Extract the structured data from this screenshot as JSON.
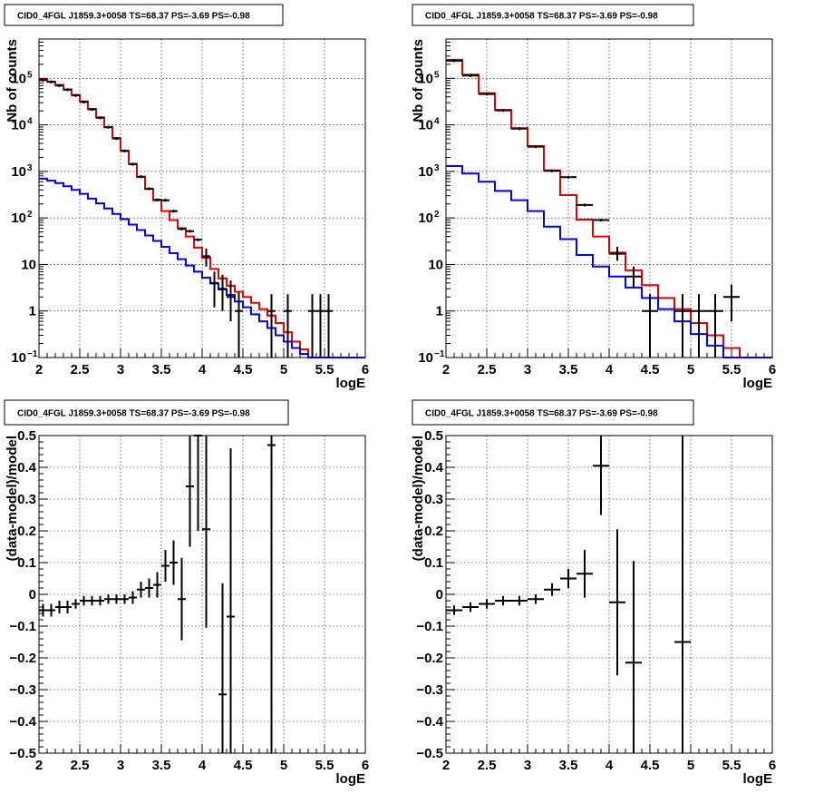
{
  "colors": {
    "data": "#000000",
    "total_model": "#e00000",
    "component_model": "#0000e0"
  },
  "chart_data": [
    {
      "id": "counts-left",
      "type": "line",
      "title": "CID0_4FGL J1859.3+0058 TS=68.37 PS=-3.69 PS=-0.98",
      "xlabel": "logE",
      "ylabel": "Nb of counts",
      "xlim": [
        2,
        6
      ],
      "ylim": [
        0.1,
        700000
      ],
      "yscale": "log",
      "grid": true,
      "x_ticks": [
        "2",
        "2.5",
        "3",
        "3.5",
        "4",
        "4.5",
        "5",
        "5.5",
        "6"
      ],
      "y_ticks": [
        {
          "value": 0.1,
          "label": "10",
          "exp": "−1"
        },
        {
          "value": 1,
          "label": "1",
          "exp": ""
        },
        {
          "value": 10,
          "label": "10",
          "exp": ""
        },
        {
          "value": 100,
          "label": "10",
          "exp": "2"
        },
        {
          "value": 1000,
          "label": "10",
          "exp": "3"
        },
        {
          "value": 10000,
          "label": "10",
          "exp": "4"
        },
        {
          "value": 100000,
          "label": "10",
          "exp": "5"
        }
      ],
      "bin_edges": [
        2.0,
        2.1,
        2.2,
        2.3,
        2.4,
        2.5,
        2.6,
        2.7,
        2.8,
        2.9,
        3.0,
        3.1,
        3.2,
        3.3,
        3.4,
        3.5,
        3.6,
        3.7,
        3.8,
        3.9,
        4.0,
        4.1,
        4.2,
        4.3,
        4.4,
        4.5,
        4.6,
        4.7,
        4.8,
        4.9,
        5.0,
        5.1,
        5.2,
        5.3,
        5.4,
        5.5,
        5.6,
        5.7,
        5.8,
        5.9,
        6.0
      ],
      "series": [
        {
          "role": "total_model",
          "values": [
            95000,
            85000,
            72000,
            58000,
            44000,
            32000,
            22000,
            14500,
            9000,
            5200,
            2800,
            1450,
            760,
            420,
            240,
            140,
            90,
            60,
            40,
            23,
            14,
            8,
            5,
            3.5,
            2.6,
            2,
            1.5,
            1.1,
            0.8,
            0.55,
            0.35,
            0.22,
            0.15,
            0.1,
            0.1,
            0.1,
            0.1,
            0.1,
            0.1,
            0.1
          ]
        },
        {
          "role": "component_model",
          "values": [
            700,
            630,
            560,
            480,
            400,
            330,
            260,
            205,
            160,
            122,
            94,
            72,
            55,
            42,
            32,
            24,
            17.5,
            13,
            9.5,
            7,
            5.2,
            3.9,
            2.9,
            2.2,
            1.6,
            1.2,
            0.85,
            0.6,
            0.43,
            0.3,
            0.22,
            0.16,
            0.12,
            0.1,
            0.1,
            0.1,
            0.1,
            0.1,
            0.1,
            0.1
          ]
        }
      ],
      "points": [
        {
          "x": 2.05,
          "y": 92000
        },
        {
          "x": 2.15,
          "y": 84000
        },
        {
          "x": 2.25,
          "y": 70000
        },
        {
          "x": 2.35,
          "y": 57000
        },
        {
          "x": 2.45,
          "y": 43000
        },
        {
          "x": 2.55,
          "y": 31000
        },
        {
          "x": 2.65,
          "y": 21500
        },
        {
          "x": 2.75,
          "y": 14200
        },
        {
          "x": 2.85,
          "y": 8900
        },
        {
          "x": 2.95,
          "y": 5100
        },
        {
          "x": 3.05,
          "y": 2750
        },
        {
          "x": 3.15,
          "y": 1430
        },
        {
          "x": 3.25,
          "y": 770
        },
        {
          "x": 3.35,
          "y": 425
        },
        {
          "x": 3.45,
          "y": 245
        },
        {
          "x": 3.55,
          "y": 240
        },
        {
          "x": 3.65,
          "y": 140
        },
        {
          "x": 3.75,
          "y": 58
        },
        {
          "x": 3.85,
          "y": 52
        },
        {
          "x": 3.95,
          "y": 34
        },
        {
          "x": 4.05,
          "y": 15,
          "lo": 9,
          "hi": 22
        },
        {
          "x": 4.15,
          "y": 4,
          "lo": 1.2,
          "hi": 7
        },
        {
          "x": 4.25,
          "y": 3,
          "lo": 1,
          "hi": 6
        },
        {
          "x": 4.35,
          "y": 2,
          "lo": 0.6,
          "hi": 4.5
        },
        {
          "x": 4.45,
          "y": 1,
          "lo": 0.1,
          "hi": 2.5
        },
        {
          "x": 4.85,
          "y": 1,
          "lo": 0.1,
          "hi": 2.3
        },
        {
          "x": 5.05,
          "y": 1,
          "lo": 0.1,
          "hi": 2.3
        },
        {
          "x": 5.35,
          "y": 1,
          "lo": 0.1,
          "hi": 2.3
        },
        {
          "x": 5.45,
          "y": 1,
          "lo": 0.1,
          "hi": 2.3
        },
        {
          "x": 5.55,
          "y": 1,
          "lo": 0.1,
          "hi": 2.3
        }
      ],
      "xhalf": 0.05
    },
    {
      "id": "counts-right",
      "type": "line",
      "title": "CID0_4FGL J1859.3+0058 TS=68.37 PS=-3.69 PS=-0.98",
      "xlabel": "logE",
      "ylabel": "Nb of counts",
      "xlim": [
        2,
        6
      ],
      "ylim": [
        0.1,
        700000
      ],
      "yscale": "log",
      "grid": true,
      "x_ticks": [
        "2",
        "2.5",
        "3",
        "3.5",
        "4",
        "4.5",
        "5",
        "5.5",
        "6"
      ],
      "y_ticks": [
        {
          "value": 0.1,
          "label": "10",
          "exp": "−1"
        },
        {
          "value": 1,
          "label": "1",
          "exp": ""
        },
        {
          "value": 10,
          "label": "10",
          "exp": ""
        },
        {
          "value": 100,
          "label": "10",
          "exp": "2"
        },
        {
          "value": 1000,
          "label": "10",
          "exp": "3"
        },
        {
          "value": 10000,
          "label": "10",
          "exp": "4"
        },
        {
          "value": 100000,
          "label": "10",
          "exp": "5"
        }
      ],
      "bin_edges": [
        2.0,
        2.2,
        2.4,
        2.6,
        2.8,
        3.0,
        3.2,
        3.4,
        3.6,
        3.8,
        4.0,
        4.2,
        4.4,
        4.6,
        4.8,
        5.0,
        5.2,
        5.4,
        5.6,
        5.8,
        6.0
      ],
      "series": [
        {
          "role": "total_model",
          "values": [
            250000,
            120000,
            48000,
            21000,
            8500,
            3500,
            1050,
            310,
            92,
            40,
            18,
            7.5,
            3.6,
            1.9,
            1.1,
            0.55,
            0.3,
            0.16,
            0.1,
            0.1
          ]
        },
        {
          "role": "component_model",
          "values": [
            1300,
            900,
            600,
            380,
            240,
            140,
            65,
            35,
            16,
            9,
            5.5,
            3.2,
            1.9,
            1.1,
            0.6,
            0.32,
            0.18,
            0.1,
            0.1,
            0.1
          ]
        }
      ],
      "points": [
        {
          "x": 2.1,
          "y": 240000
        },
        {
          "x": 2.3,
          "y": 115000
        },
        {
          "x": 2.5,
          "y": 46000
        },
        {
          "x": 2.7,
          "y": 20500
        },
        {
          "x": 2.9,
          "y": 8300
        },
        {
          "x": 3.1,
          "y": 3400
        },
        {
          "x": 3.3,
          "y": 1030
        },
        {
          "x": 3.5,
          "y": 750
        },
        {
          "x": 3.7,
          "y": 190
        },
        {
          "x": 3.9,
          "y": 90
        },
        {
          "x": 4.1,
          "y": 17,
          "lo": 12,
          "hi": 24
        },
        {
          "x": 4.3,
          "y": 5.5,
          "lo": 3.2,
          "hi": 9
        },
        {
          "x": 4.5,
          "y": 1,
          "lo": 0.1,
          "hi": 2.3
        },
        {
          "x": 4.9,
          "y": 1,
          "lo": 0.1,
          "hi": 2.3
        },
        {
          "x": 5.1,
          "y": 1,
          "lo": 0.1,
          "hi": 2.3
        },
        {
          "x": 5.3,
          "y": 1,
          "lo": 0.1,
          "hi": 2.3
        },
        {
          "x": 5.5,
          "y": 2,
          "lo": 0.6,
          "hi": 3.7
        }
      ],
      "xhalf": 0.1
    },
    {
      "id": "residual-left",
      "type": "scatter",
      "title": "CID0_4FGL J1859.3+0058 TS=68.37 PS=-3.69 PS=-0.98",
      "xlabel": "logE",
      "ylabel": "(data-model)/model",
      "xlim": [
        2,
        6
      ],
      "ylim": [
        -0.5,
        0.5
      ],
      "yscale": "linear",
      "grid": true,
      "x_ticks": [
        "2",
        "2.5",
        "3",
        "3.5",
        "4",
        "4.5",
        "5",
        "5.5",
        "6"
      ],
      "y_ticks": [
        {
          "value": -0.5,
          "label": "−0.5",
          "exp": ""
        },
        {
          "value": -0.4,
          "label": "−0.4",
          "exp": ""
        },
        {
          "value": -0.3,
          "label": "−0.3",
          "exp": ""
        },
        {
          "value": -0.2,
          "label": "−0.2",
          "exp": ""
        },
        {
          "value": -0.1,
          "label": "−0.1",
          "exp": ""
        },
        {
          "value": 0,
          "label": "0",
          "exp": ""
        },
        {
          "value": 0.1,
          "label": "0.1",
          "exp": ""
        },
        {
          "value": 0.2,
          "label": "0.2",
          "exp": ""
        },
        {
          "value": 0.3,
          "label": "0.3",
          "exp": ""
        },
        {
          "value": 0.4,
          "label": "0.4",
          "exp": ""
        },
        {
          "value": 0.5,
          "label": "0.5",
          "exp": ""
        }
      ],
      "points": [
        {
          "x": 2.05,
          "y": -0.05,
          "err": 0.02
        },
        {
          "x": 2.15,
          "y": -0.05,
          "err": 0.02
        },
        {
          "x": 2.25,
          "y": -0.04,
          "err": 0.02
        },
        {
          "x": 2.35,
          "y": -0.04,
          "err": 0.02
        },
        {
          "x": 2.45,
          "y": -0.03,
          "err": 0.015
        },
        {
          "x": 2.55,
          "y": -0.02,
          "err": 0.015
        },
        {
          "x": 2.65,
          "y": -0.02,
          "err": 0.015
        },
        {
          "x": 2.75,
          "y": -0.02,
          "err": 0.015
        },
        {
          "x": 2.85,
          "y": -0.015,
          "err": 0.015
        },
        {
          "x": 2.95,
          "y": -0.015,
          "err": 0.015
        },
        {
          "x": 3.05,
          "y": -0.015,
          "err": 0.015
        },
        {
          "x": 3.15,
          "y": -0.01,
          "err": 0.02
        },
        {
          "x": 3.25,
          "y": 0.015,
          "err": 0.025
        },
        {
          "x": 3.35,
          "y": 0.02,
          "err": 0.03
        },
        {
          "x": 3.45,
          "y": 0.03,
          "err": 0.04
        },
        {
          "x": 3.55,
          "y": 0.09,
          "err": 0.05
        },
        {
          "x": 3.65,
          "y": 0.1,
          "err": 0.07
        },
        {
          "x": 3.75,
          "y": -0.015,
          "err": 0.13
        },
        {
          "x": 3.85,
          "y": 0.34,
          "err": 0.19
        },
        {
          "x": 3.95,
          "y": 0.5,
          "err": 0.3
        },
        {
          "x": 4.05,
          "y": 0.205,
          "err": 0.31
        },
        {
          "x": 4.25,
          "y": -0.315,
          "err": 0.35
        },
        {
          "x": 4.35,
          "y": -0.07,
          "err": 0.53
        },
        {
          "x": 4.85,
          "y": 0.47,
          "err": 1.0
        }
      ],
      "xhalf": 0.05
    },
    {
      "id": "residual-right",
      "type": "scatter",
      "title": "CID0_4FGL J1859.3+0058 TS=68.37 PS=-3.69 PS=-0.98",
      "xlabel": "logE",
      "ylabel": "(data-model)/model",
      "xlim": [
        2,
        6
      ],
      "ylim": [
        -0.5,
        0.5
      ],
      "yscale": "linear",
      "grid": true,
      "x_ticks": [
        "2",
        "2.5",
        "3",
        "3.5",
        "4",
        "4.5",
        "5",
        "5.5",
        "6"
      ],
      "y_ticks": [
        {
          "value": -0.5,
          "label": "−0.5",
          "exp": ""
        },
        {
          "value": -0.4,
          "label": "−0.4",
          "exp": ""
        },
        {
          "value": -0.3,
          "label": "−0.3",
          "exp": ""
        },
        {
          "value": -0.2,
          "label": "−0.2",
          "exp": ""
        },
        {
          "value": -0.1,
          "label": "−0.1",
          "exp": ""
        },
        {
          "value": 0,
          "label": "0",
          "exp": ""
        },
        {
          "value": 0.1,
          "label": "0.1",
          "exp": ""
        },
        {
          "value": 0.2,
          "label": "0.2",
          "exp": ""
        },
        {
          "value": 0.3,
          "label": "0.3",
          "exp": ""
        },
        {
          "value": 0.4,
          "label": "0.4",
          "exp": ""
        },
        {
          "value": 0.5,
          "label": "0.5",
          "exp": ""
        }
      ],
      "points": [
        {
          "x": 2.1,
          "y": -0.05,
          "err": 0.015
        },
        {
          "x": 2.3,
          "y": -0.04,
          "err": 0.015
        },
        {
          "x": 2.5,
          "y": -0.03,
          "err": 0.015
        },
        {
          "x": 2.7,
          "y": -0.02,
          "err": 0.015
        },
        {
          "x": 2.9,
          "y": -0.02,
          "err": 0.015
        },
        {
          "x": 3.1,
          "y": -0.015,
          "err": 0.015
        },
        {
          "x": 3.3,
          "y": 0.015,
          "err": 0.02
        },
        {
          "x": 3.5,
          "y": 0.05,
          "err": 0.03
        },
        {
          "x": 3.7,
          "y": 0.065,
          "err": 0.075
        },
        {
          "x": 3.9,
          "y": 0.405,
          "err": 0.155
        },
        {
          "x": 4.1,
          "y": -0.025,
          "err": 0.23
        },
        {
          "x": 4.3,
          "y": -0.215,
          "err": 0.32
        },
        {
          "x": 4.9,
          "y": -0.15,
          "err": 1.0
        }
      ],
      "xhalf": 0.1
    }
  ]
}
